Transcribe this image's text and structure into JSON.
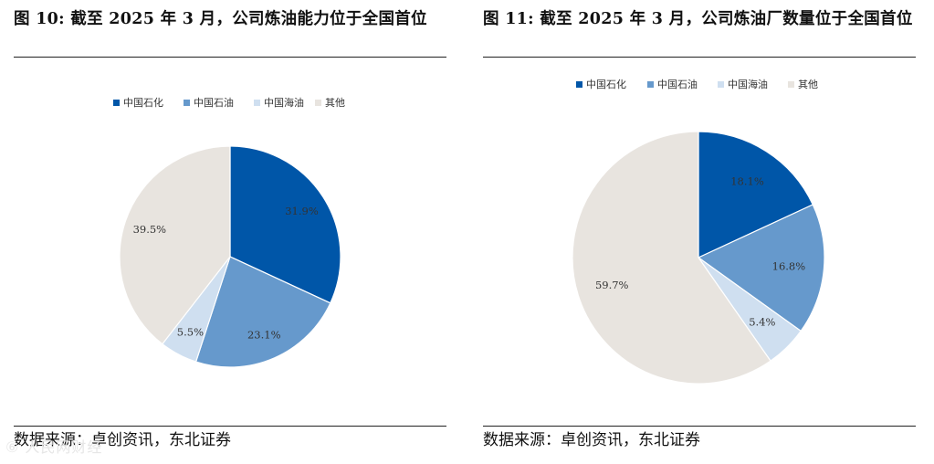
{
  "watermark": "⑥ 人民网财经",
  "chart_data": [
    {
      "type": "pie",
      "title": "图 10: 截至 2025 年 3 月，公司炼油能力位于全国首位",
      "source": "数据来源：卓创资讯，东北证券",
      "legend_position": "top",
      "slices": [
        {
          "name": "中国石化",
          "value": 31.9,
          "label": "31.9%",
          "color": "#0056a8"
        },
        {
          "name": "中国石油",
          "value": 23.1,
          "label": "23.1%",
          "color": "#6699cc"
        },
        {
          "name": "中国海油",
          "value": 5.5,
          "label": "5.5%",
          "color": "#cfdff0"
        },
        {
          "name": "其他",
          "value": 39.5,
          "label": "39.5%",
          "color": "#e8e4df"
        }
      ]
    },
    {
      "type": "pie",
      "title": "图 11: 截至 2025 年 3 月，公司炼油厂数量位于全国首位",
      "source": "数据来源：卓创资讯，东北证券",
      "legend_position": "top",
      "slices": [
        {
          "name": "中国石化",
          "value": 18.1,
          "label": "18.1%",
          "color": "#0056a8"
        },
        {
          "name": "中国石油",
          "value": 16.8,
          "label": "16.8%",
          "color": "#6699cc"
        },
        {
          "name": "中国海油",
          "value": 5.4,
          "label": "5.4%",
          "color": "#cfdff0"
        },
        {
          "name": "其他",
          "value": 59.7,
          "label": "59.7%",
          "color": "#e8e4df"
        }
      ]
    }
  ]
}
